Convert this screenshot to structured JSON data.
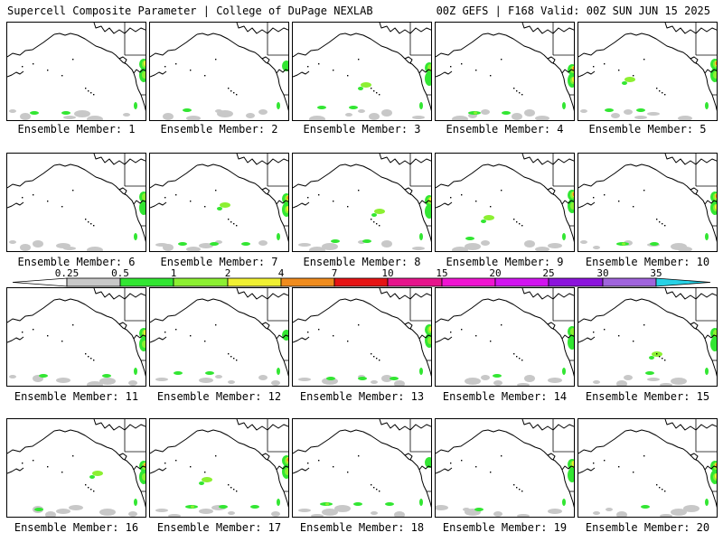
{
  "header": {
    "left": "Supercell Composite Parameter | College of DuPage NEXLAB",
    "right": "00Z GEFS | F168 Valid: 00Z SUN JUN 15 2025"
  },
  "members": [
    "Ensemble Member: 1",
    "Ensemble Member: 2",
    "Ensemble Member: 3",
    "Ensemble Member: 4",
    "Ensemble Member: 5",
    "Ensemble Member: 6",
    "Ensemble Member: 7",
    "Ensemble Member: 8",
    "Ensemble Member: 9",
    "Ensemble Member: 10",
    "Ensemble Member: 11",
    "Ensemble Member: 12",
    "Ensemble Member: 13",
    "Ensemble Member: 14",
    "Ensemble Member: 15",
    "Ensemble Member: 16",
    "Ensemble Member: 17",
    "Ensemble Member: 18",
    "Ensemble Member: 19",
    "Ensemble Member: 20"
  ],
  "colorbar": {
    "ticks": [
      "0.25",
      "0.5",
      "1",
      "2",
      "4",
      "7",
      "10",
      "15",
      "20",
      "25",
      "30",
      "35"
    ],
    "colors": [
      "#c8c8c8",
      "#32e632",
      "#8cf032",
      "#f0f032",
      "#f08c1e",
      "#e61414",
      "#e6148c",
      "#f014d2",
      "#d214f0",
      "#8c14dc",
      "#a064dc",
      "#28d2e6"
    ]
  },
  "scp_blobs": [
    {
      "lvl": [
        1,
        1,
        0
      ],
      "east": [
        3,
        2
      ],
      "west": []
    },
    {
      "lvl": [
        1,
        0,
        0
      ],
      "east": [
        1
      ],
      "west": []
    },
    {
      "lvl": [
        1,
        1,
        0
      ],
      "east": [
        2,
        1
      ],
      "west": [
        2
      ]
    },
    {
      "lvl": [
        2,
        1,
        0
      ],
      "east": [
        4,
        3
      ],
      "west": []
    },
    {
      "lvl": [
        1,
        1,
        0
      ],
      "east": [
        4,
        2
      ],
      "west": [
        2
      ]
    },
    {
      "lvl": [
        0,
        0,
        0
      ],
      "east": [
        2,
        1
      ],
      "west": []
    },
    {
      "lvl": [
        1,
        1,
        1
      ],
      "east": [
        5,
        3
      ],
      "west": [
        2
      ]
    },
    {
      "lvl": [
        1,
        1,
        0
      ],
      "east": [
        3,
        1
      ],
      "west": [
        2
      ]
    },
    {
      "lvl": [
        1,
        0,
        0
      ],
      "east": [
        4,
        2
      ],
      "west": [
        2
      ]
    },
    {
      "lvl": [
        2,
        1,
        0
      ],
      "east": [
        5,
        3
      ],
      "west": []
    },
    {
      "lvl": [
        1,
        0,
        1
      ],
      "east": [
        3,
        2
      ],
      "west": []
    },
    {
      "lvl": [
        1,
        1,
        0
      ],
      "east": [
        1
      ],
      "west": []
    },
    {
      "lvl": [
        1,
        1,
        1
      ],
      "east": [
        3,
        2
      ],
      "west": []
    },
    {
      "lvl": [
        0,
        1,
        0
      ],
      "east": [
        2,
        1
      ],
      "west": []
    },
    {
      "lvl": [
        0,
        1,
        0
      ],
      "east": [
        2,
        1
      ],
      "west": [
        2
      ]
    },
    {
      "lvl": [
        1,
        0,
        0
      ],
      "east": [
        4,
        2
      ],
      "west": [
        2
      ]
    },
    {
      "lvl": [
        2,
        1,
        1
      ],
      "east": [
        4,
        2
      ],
      "west": [
        2
      ]
    },
    {
      "lvl": [
        2,
        1,
        1
      ],
      "east": [
        1
      ],
      "west": []
    },
    {
      "lvl": [
        1,
        0,
        0
      ],
      "east": [
        3,
        1
      ],
      "west": []
    },
    {
      "lvl": [
        0,
        1,
        0
      ],
      "east": [
        5,
        3
      ],
      "west": []
    }
  ]
}
